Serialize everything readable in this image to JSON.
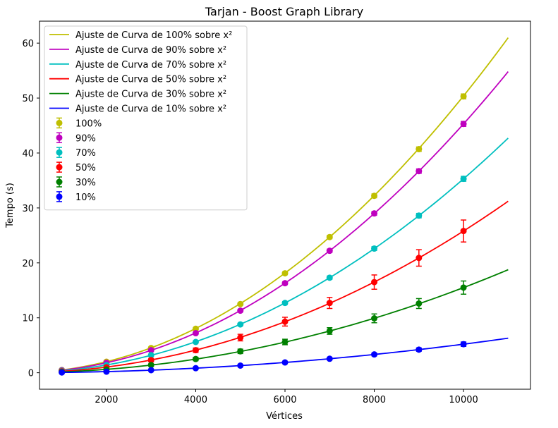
{
  "chart_data": {
    "type": "line",
    "title": "Tarjan - Boost Graph Library",
    "xlabel": "Vértices",
    "ylabel": "Tempo (s)",
    "xlim": [
      500,
      11500
    ],
    "ylim": [
      -3,
      64
    ],
    "xticks": [
      2000,
      4000,
      6000,
      8000,
      10000
    ],
    "yticks": [
      0,
      10,
      20,
      30,
      40,
      50,
      60
    ],
    "grid": false,
    "legend_position": "top-left",
    "x": [
      1000,
      2000,
      3000,
      4000,
      5000,
      6000,
      7000,
      8000,
      9000,
      10000
    ],
    "fit_x_range": [
      1000,
      11000
    ],
    "series": [
      {
        "name": "100%",
        "fit_name": "Ajuste de Curva de 100% sobre x²",
        "color": "#bfbf00",
        "fit_coef": 5.04e-07,
        "values": [
          0.5,
          2.0,
          4.5,
          8.0,
          12.5,
          18.1,
          24.7,
          32.2,
          40.7,
          50.3
        ],
        "errors": [
          0.1,
          0.1,
          0.15,
          0.2,
          0.2,
          0.25,
          0.3,
          0.35,
          0.4,
          0.45
        ]
      },
      {
        "name": "90%",
        "fit_name": "Ajuste de Curva de 90% sobre x²",
        "color": "#bf00bf",
        "fit_coef": 4.53e-07,
        "values": [
          0.45,
          1.8,
          4.1,
          7.2,
          11.3,
          16.3,
          22.2,
          29.0,
          36.7,
          45.3
        ],
        "errors": [
          0.1,
          0.1,
          0.15,
          0.2,
          0.2,
          0.25,
          0.3,
          0.35,
          0.4,
          0.45
        ]
      },
      {
        "name": "70%",
        "fit_name": "Ajuste de Curva de 70% sobre x²",
        "color": "#00bfbf",
        "fit_coef": 3.53e-07,
        "values": [
          0.35,
          1.4,
          3.2,
          5.6,
          8.8,
          12.7,
          17.3,
          22.6,
          28.6,
          35.3
        ],
        "errors": [
          0.1,
          0.1,
          0.15,
          0.2,
          0.2,
          0.25,
          0.3,
          0.35,
          0.4,
          0.45
        ]
      },
      {
        "name": "50%",
        "fit_name": "Ajuste de Curva de 50% sobre x²",
        "color": "#ff0000",
        "fit_coef": 2.58e-07,
        "values": [
          0.26,
          1.0,
          2.3,
          4.1,
          6.4,
          9.3,
          12.7,
          16.5,
          20.9,
          25.8
        ],
        "errors": [
          0.1,
          0.2,
          0.3,
          0.4,
          0.6,
          0.8,
          1.0,
          1.3,
          1.5,
          2.0
        ]
      },
      {
        "name": "30%",
        "fit_name": "Ajuste de Curva de 30% sobre x²",
        "color": "#008000",
        "fit_coef": 1.55e-07,
        "values": [
          0.15,
          0.6,
          1.4,
          2.5,
          3.9,
          5.6,
          7.6,
          9.9,
          12.6,
          15.5
        ],
        "errors": [
          0.1,
          0.1,
          0.2,
          0.3,
          0.4,
          0.5,
          0.6,
          0.8,
          0.9,
          1.2
        ]
      },
      {
        "name": "10%",
        "fit_name": "Ajuste de Curva de 10% sobre x²",
        "color": "#0000ff",
        "fit_coef": 5.2e-08,
        "values": [
          0.05,
          0.2,
          0.47,
          0.83,
          1.3,
          1.87,
          2.55,
          3.33,
          4.21,
          5.2
        ],
        "errors": [
          0.05,
          0.05,
          0.1,
          0.1,
          0.15,
          0.2,
          0.2,
          0.25,
          0.3,
          0.4
        ]
      }
    ]
  }
}
